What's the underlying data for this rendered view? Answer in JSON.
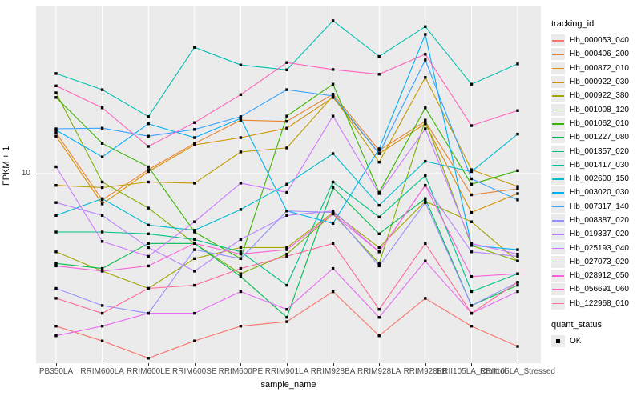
{
  "figure": {
    "x_axis_title": "sample_name",
    "y_axis_title": "FPKM + 1",
    "y_tick_label": "10"
  },
  "legend": {
    "title": "tracking_id",
    "marker_legend_title": "quant_status",
    "marker_legend_item": "OK"
  },
  "colors": {
    "panel_background": "#EBEBEB",
    "gridline": "#FFFFFF",
    "tick_text": "#4D4D4D",
    "axis_text": "#000000",
    "marker": "#000000"
  },
  "chart_data": {
    "type": "line",
    "title": "",
    "xlabel": "sample_name",
    "ylabel": "FPKM + 1",
    "y_scale": "log10",
    "y_tick_labels": [
      "10"
    ],
    "ylim_approx": [
      1.5,
      52
    ],
    "grid": "major",
    "legend_position": "right",
    "legend_title": "tracking_id",
    "marker_legend": {
      "title": "quant_status",
      "items": [
        "OK"
      ]
    },
    "x_categories": [
      "PB350LA",
      "RRIM600LA",
      "RRIM600LE",
      "RRIM600SE",
      "RRIM600PE",
      "RRIM901LA",
      "RRIM928BA",
      "RRIM928LA",
      "RRIM928LB",
      "RRII105LA_Control",
      "RRII105LA_Stressed"
    ],
    "series": [
      {
        "name": "Hb_000053_040",
        "color": "#F8766D",
        "values": [
          2.2,
          1.9,
          1.6,
          1.9,
          2.2,
          2.3,
          3.1,
          2.0,
          2.9,
          2.2,
          1.8
        ]
      },
      {
        "name": "Hb_000406_200",
        "color": "#EA8331",
        "values": [
          15.0,
          7.7,
          10.4,
          13.5,
          17.0,
          16.8,
          22.0,
          12.6,
          16.8,
          8.1,
          8.6
        ]
      },
      {
        "name": "Hb_000872_010",
        "color": "#D89000",
        "values": [
          14.5,
          7.4,
          10.2,
          13.3,
          14.3,
          15.7,
          21.3,
          12.2,
          16.4,
          6.8,
          8.2
        ]
      },
      {
        "name": "Hb_000922_030",
        "color": "#C09B00",
        "values": [
          8.9,
          8.7,
          9.2,
          9.1,
          12.4,
          12.9,
          21.6,
          11.2,
          26.0,
          10.4,
          8.8
        ]
      },
      {
        "name": "Hb_000922_380",
        "color": "#A3A500",
        "values": [
          4.6,
          3.8,
          3.2,
          4.3,
          4.8,
          4.8,
          6.8,
          4.8,
          7.6,
          6.2,
          4.2
        ]
      },
      {
        "name": "Hb_001008_120",
        "color": "#7CAE00",
        "values": [
          22.3,
          9.2,
          7.1,
          5.0,
          3.7,
          4.5,
          6.7,
          4.1,
          17.0,
          4.9,
          4.2
        ]
      },
      {
        "name": "Hb_001062_010",
        "color": "#39B600",
        "values": [
          21.3,
          13.5,
          10.7,
          5.6,
          4.3,
          17.7,
          24.3,
          8.3,
          19.2,
          9.0,
          10.3
        ]
      },
      {
        "name": "Hb_001227_080",
        "color": "#00BB4E",
        "values": [
          4.1,
          3.9,
          5.0,
          5.0,
          3.6,
          2.4,
          8.7,
          5.5,
          7.8,
          2.7,
          3.3
        ]
      },
      {
        "name": "Hb_001357_020",
        "color": "#00C087",
        "values": [
          5.6,
          5.6,
          5.5,
          5.2,
          4.6,
          3.3,
          9.2,
          6.5,
          9.8,
          3.1,
          3.7
        ]
      },
      {
        "name": "Hb_001417_030",
        "color": "#00C0B2",
        "values": [
          27.0,
          23.0,
          17.6,
          35.0,
          29.4,
          28.0,
          45.6,
          32.0,
          43.0,
          24.3,
          29.7
        ]
      },
      {
        "name": "Hb_002600_150",
        "color": "#00BDD0",
        "values": [
          6.6,
          7.8,
          6.0,
          5.7,
          7.0,
          9.0,
          12.2,
          7.3,
          11.3,
          10.2,
          14.8
        ]
      },
      {
        "name": "Hb_003020_030",
        "color": "#00B0F6",
        "values": [
          15.4,
          11.8,
          16.4,
          14.3,
          17.3,
          6.9,
          6.1,
          12.8,
          39.8,
          4.9,
          4.7
        ]
      },
      {
        "name": "Hb_007317_140",
        "color": "#35A2FF",
        "values": [
          15.6,
          15.7,
          14.5,
          15.5,
          17.6,
          23.0,
          21.6,
          12.2,
          30.9,
          9.5,
          7.7
        ]
      },
      {
        "name": "Hb_008387_020",
        "color": "#9590FF",
        "values": [
          3.2,
          2.7,
          2.5,
          4.7,
          4.3,
          6.9,
          6.8,
          4.0,
          7.5,
          2.7,
          3.4
        ]
      },
      {
        "name": "Hb_019337_020",
        "color": "#B983FF",
        "values": [
          7.5,
          6.6,
          4.8,
          3.8,
          5.2,
          6.6,
          6.9,
          4.6,
          8.9,
          4.6,
          4.4
        ]
      },
      {
        "name": "Hb_025193_040",
        "color": "#CD79FF",
        "values": [
          10.7,
          5.1,
          4.4,
          6.2,
          9.1,
          8.3,
          17.7,
          8.2,
          15.6,
          5.0,
          4.5
        ]
      },
      {
        "name": "Hb_027073_020",
        "color": "#E76BF3",
        "values": [
          2.0,
          2.2,
          2.5,
          2.5,
          3.1,
          2.6,
          3.9,
          2.4,
          4.2,
          2.5,
          3.1
        ]
      },
      {
        "name": "Hb_028912_050",
        "color": "#FA62DB",
        "values": [
          4.0,
          3.8,
          4.0,
          5.0,
          4.5,
          4.7,
          6.7,
          4.6,
          8.9,
          3.6,
          3.7
        ]
      },
      {
        "name": "Hb_056691_060",
        "color": "#FF62BC",
        "values": [
          23.9,
          19.2,
          13.1,
          16.6,
          21.9,
          30.1,
          28.1,
          26.8,
          32.7,
          16.1,
          18.7
        ]
      },
      {
        "name": "Hb_122968_010",
        "color": "#FF6A98",
        "values": [
          2.9,
          2.5,
          3.2,
          3.3,
          3.9,
          4.4,
          5.0,
          2.6,
          5.0,
          2.5,
          3.4
        ]
      }
    ]
  }
}
